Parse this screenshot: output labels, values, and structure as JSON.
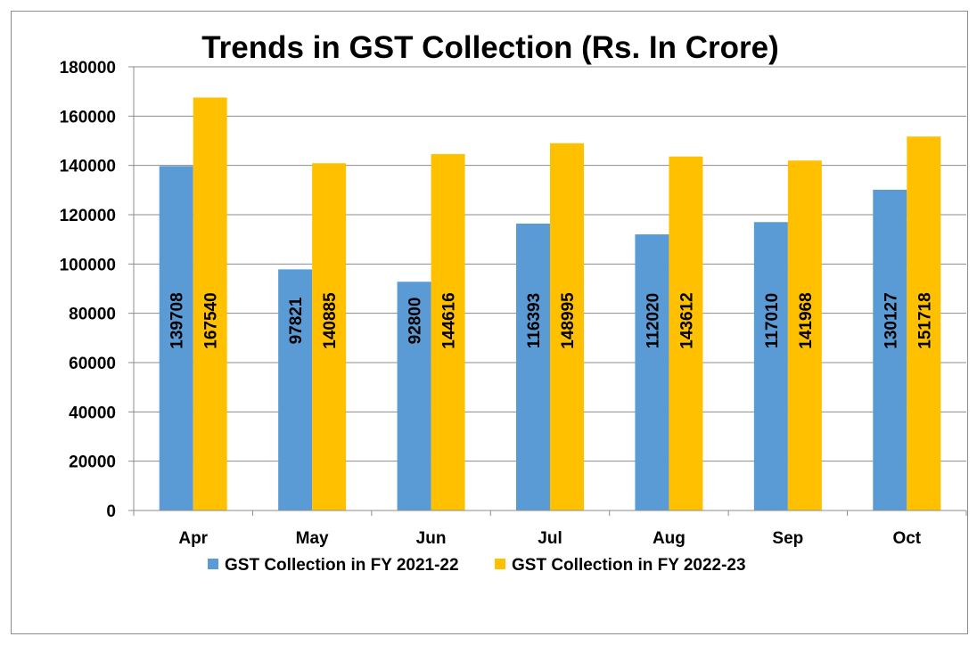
{
  "chart_data": {
    "type": "bar",
    "title": "Trends in GST Collection (Rs. In Crore)",
    "categories": [
      "Apr",
      "May",
      "Jun",
      "Jul",
      "Aug",
      "Sep",
      "Oct"
    ],
    "series": [
      {
        "name": "GST Collection in FY 2021-22",
        "color": "#5b9bd5",
        "values": [
          139708,
          97821,
          92800,
          116393,
          112020,
          117010,
          130127
        ]
      },
      {
        "name": "GST Collection in FY 2022-23",
        "color": "#ffc000",
        "values": [
          167540,
          140885,
          144616,
          148995,
          143612,
          141968,
          151718
        ]
      }
    ],
    "ylim": [
      0,
      180000
    ],
    "yticks": [
      0,
      20000,
      40000,
      60000,
      80000,
      100000,
      120000,
      140000,
      160000,
      180000
    ],
    "grid": true,
    "legend_position": "bottom",
    "data_labels": "inside-rotated"
  }
}
